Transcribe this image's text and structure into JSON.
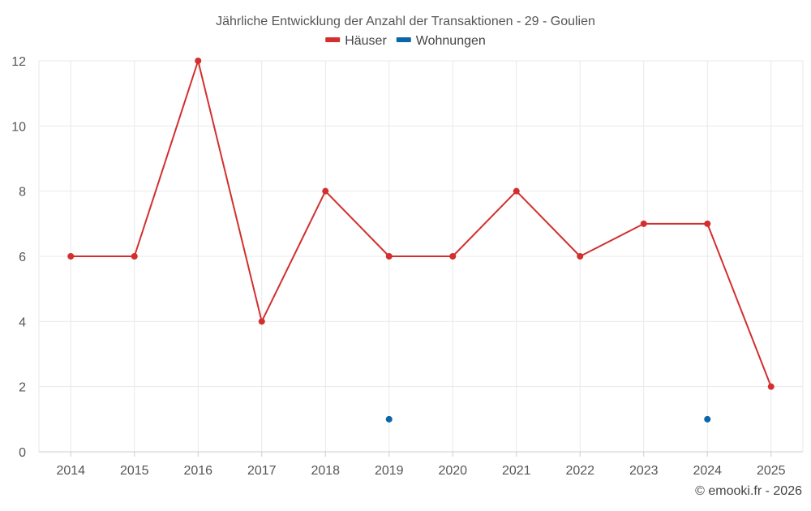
{
  "chart_data": {
    "type": "line",
    "title": "Jährliche Entwicklung der Anzahl der Transaktionen - 29 - Goulien",
    "categories": [
      "2014",
      "2015",
      "2016",
      "2017",
      "2018",
      "2019",
      "2020",
      "2021",
      "2022",
      "2023",
      "2024",
      "2025"
    ],
    "series": [
      {
        "name": "Häuser",
        "color": "#d32f2f",
        "values": [
          6,
          6,
          12,
          4,
          8,
          6,
          6,
          8,
          6,
          7,
          7,
          2
        ]
      },
      {
        "name": "Wohnungen",
        "color": "#0b66a8",
        "values": [
          null,
          null,
          null,
          null,
          null,
          1,
          null,
          null,
          null,
          null,
          1,
          null
        ]
      }
    ],
    "ylim": [
      0,
      12
    ],
    "yticks": [
      0,
      2,
      4,
      6,
      8,
      10,
      12
    ],
    "grid": true,
    "legend": "top-center",
    "xlabel": "",
    "ylabel": ""
  },
  "footer": {
    "credit": "© emooki.fr - 2026"
  }
}
